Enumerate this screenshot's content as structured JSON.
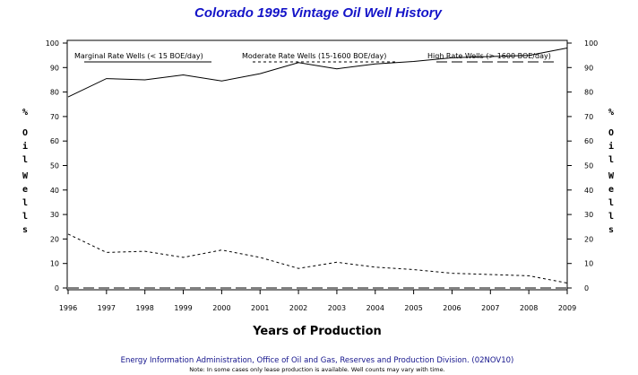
{
  "chart_data": {
    "type": "line",
    "title": "Colorado 1995 Vintage Oil Well History",
    "xlabel": "Years of Production",
    "ylabel": "% Oil Wells",
    "ylabel_chars": [
      "%",
      "O",
      "i",
      "l",
      "W",
      "e",
      "l",
      "l",
      "s"
    ],
    "ylim": [
      0,
      100
    ],
    "yticks": [
      0,
      10,
      20,
      30,
      40,
      50,
      60,
      70,
      80,
      90,
      100
    ],
    "x": [
      "1996",
      "1997",
      "1998",
      "1999",
      "2000",
      "2001",
      "2002",
      "2003",
      "2004",
      "2005",
      "2006",
      "2007",
      "2008",
      "2009"
    ],
    "series": [
      {
        "name": "Marginal Rate Wells (< 15 BOE/day)",
        "style": "solid",
        "values": [
          78,
          85.5,
          85,
          87,
          84.5,
          87.5,
          92,
          89.5,
          91.5,
          92.5,
          94,
          94.5,
          95,
          98
        ]
      },
      {
        "name": "Moderate Rate Wells (15-1600 BOE/day)",
        "style": "short-dash",
        "values": [
          22,
          14.5,
          15,
          12.5,
          15.5,
          12.5,
          8,
          10.5,
          8.5,
          7.5,
          6,
          5.5,
          5,
          2
        ]
      },
      {
        "name": "High Rate Wells (> 1600 BOE/day)",
        "style": "long-dash",
        "values": [
          0,
          0,
          0,
          0,
          0,
          0,
          0,
          0,
          0,
          0,
          0,
          0,
          0,
          0
        ]
      }
    ],
    "legend": "top",
    "grid": false
  },
  "footer": {
    "source": "Energy Information Administration, Office of Oil and Gas, Reserves and Production Division. (02NOV10)",
    "note": "Note: In some cases only lease production is available. Well counts may vary with time."
  }
}
